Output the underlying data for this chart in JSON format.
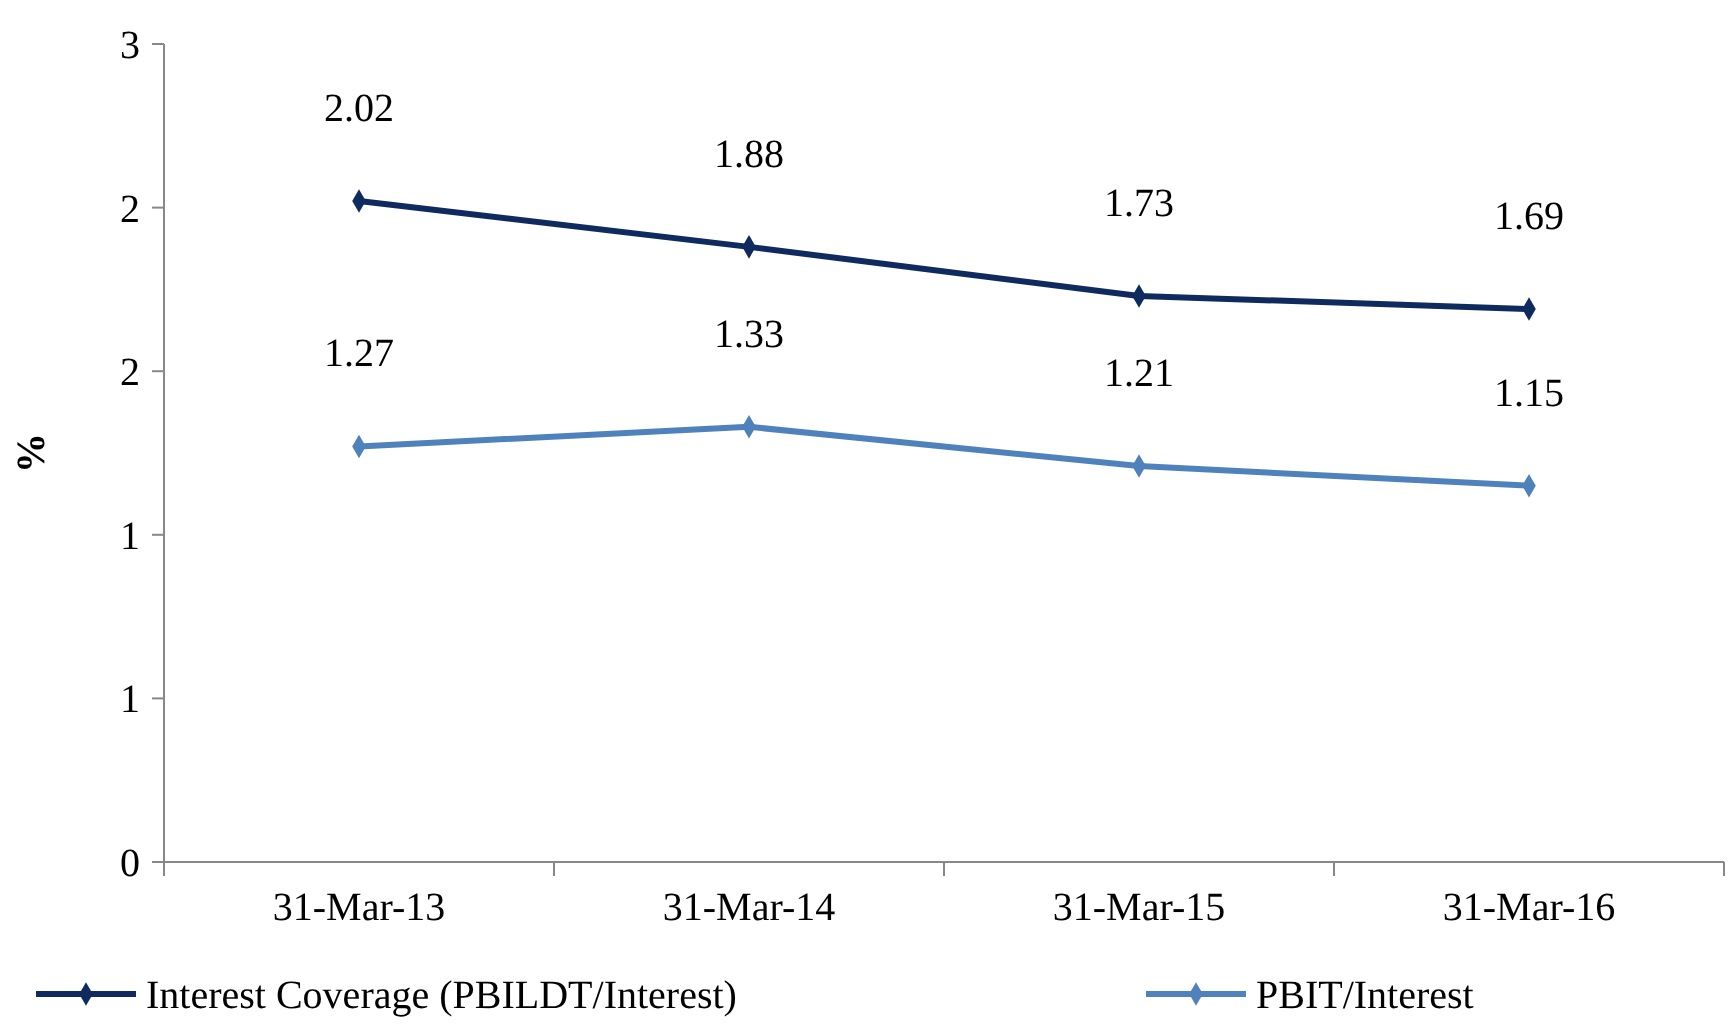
{
  "chart_data": {
    "type": "line",
    "ylabel": "%",
    "categories": [
      "31-Mar-13",
      "31-Mar-14",
      "31-Mar-15",
      "31-Mar-16"
    ],
    "series": [
      {
        "name": "Interest Coverage (PBILDT/Interest)",
        "color": "#0e2a5e",
        "values": [
          2.02,
          1.88,
          1.73,
          1.69
        ]
      },
      {
        "name": "PBIT/Interest",
        "color": "#4f81bd",
        "values": [
          1.27,
          1.33,
          1.21,
          1.15
        ]
      }
    ],
    "ylim": [
      0,
      2.5
    ],
    "yticks": [
      {
        "value": 0,
        "label": "0"
      },
      {
        "value": 0.5,
        "label": "1"
      },
      {
        "value": 1,
        "label": "1"
      },
      {
        "value": 1.5,
        "label": "2"
      },
      {
        "value": 2,
        "label": "2"
      },
      {
        "value": 2.5,
        "label": "3"
      }
    ],
    "data_labels": true,
    "marker": "diamond",
    "line_style": "solid",
    "grid": false,
    "legend": "bottom"
  }
}
